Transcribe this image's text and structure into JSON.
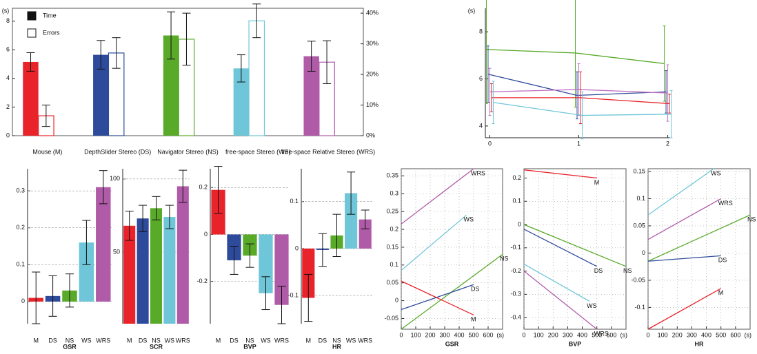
{
  "chart_data": [
    {
      "type": "bar",
      "y_label": "(s)",
      "categories": [
        "Mouse (M)",
        "DepthSlider Stereo (DS)",
        "Navigator Stereo (NS)",
        "free-space Stereo (WS)",
        "free-space Relative Stereo (WRS)"
      ],
      "colors": [
        "#e8232a",
        "#2e4b9b",
        "#5aaa2a",
        "#6ec6d8",
        "#b05ba8"
      ],
      "series": [
        {
          "name": "Time",
          "style": "filled",
          "values": [
            5.15,
            5.65,
            7.0,
            4.7,
            5.55
          ],
          "errors": [
            0.65,
            1.0,
            1.65,
            0.95,
            1.05
          ]
        },
        {
          "name": "Errors",
          "style": "outline",
          "axis": "y2",
          "values": [
            6.5,
            27,
            31.5,
            37.5,
            24
          ],
          "errors": [
            3.5,
            5,
            8.5,
            5.5,
            7
          ]
        }
      ],
      "ylim": [
        0,
        8.9
      ],
      "yticks": [
        0,
        2,
        4,
        6,
        8
      ],
      "y2lim": [
        0,
        41.6
      ],
      "y2ticks": [
        {
          "value": 0,
          "label": "0%"
        },
        {
          "value": 10,
          "label": "10%"
        },
        {
          "value": 20,
          "label": "20%"
        },
        {
          "value": 30,
          "label": "30%"
        },
        {
          "value": 40,
          "label": "40%"
        }
      ],
      "legend": "top-left",
      "frame": true
    },
    {
      "type": "line",
      "y_label": "(s)",
      "x": [
        0,
        1,
        2
      ],
      "xlim": [
        -0.05,
        2.05
      ],
      "xticks": [
        0,
        1,
        2
      ],
      "ylim": [
        3.5,
        9
      ],
      "yticks": [
        4,
        6,
        8
      ],
      "series": [
        {
          "color": "#5aaa2a",
          "values": [
            7.25,
            7.1,
            6.65
          ],
          "errors": [
            2.3,
            2.3,
            1.6
          ]
        },
        {
          "color": "#2e4b9b",
          "values": [
            6.2,
            5.3,
            5.45
          ],
          "errors": [
            1.2,
            1.0,
            0.9
          ]
        },
        {
          "color": "#c070c0",
          "values": [
            5.45,
            5.55,
            5.4
          ],
          "errors": [
            1.0,
            1.1,
            1.2
          ]
        },
        {
          "color": "#e8232a",
          "values": [
            5.2,
            5.2,
            4.95
          ],
          "errors": [
            0.6,
            1.1,
            0.4
          ]
        },
        {
          "color": "#6ec6d8",
          "values": [
            5.0,
            4.45,
            4.5
          ],
          "errors": [
            0.9,
            1.0,
            1.0
          ]
        }
      ]
    },
    {
      "type": "bar",
      "x_label": "GSR",
      "categories": [
        "M",
        "DS",
        "NS",
        "WS",
        "WRS"
      ],
      "colors": [
        "#e8232a",
        "#2e4b9b",
        "#5aaa2a",
        "#6ec6d8",
        "#b05ba8"
      ],
      "values": [
        0.01,
        0.015,
        0.03,
        0.16,
        0.31
      ],
      "errors": [
        0.07,
        0.055,
        0.045,
        0.06,
        0.045
      ],
      "ylim": [
        -0.06,
        0.36
      ],
      "yticks": [
        0,
        0.1,
        0.2,
        0.3
      ],
      "grid": true
    },
    {
      "type": "bar",
      "x_label": "SCR",
      "categories": [
        "M",
        "DS",
        "NS",
        "WS",
        "WRS"
      ],
      "colors": [
        "#e8232a",
        "#2e4b9b",
        "#5aaa2a",
        "#6ec6d8",
        "#b05ba8"
      ],
      "values": [
        68,
        73,
        80,
        74,
        95
      ],
      "errors": [
        10,
        9,
        8,
        8,
        11
      ],
      "ylim": [
        1,
        107
      ],
      "yticks": [
        50,
        100
      ],
      "grid": true
    },
    {
      "type": "bar",
      "x_label": "BVP",
      "categories": [
        "M",
        "DS",
        "NS",
        "WS",
        "WRS"
      ],
      "colors": [
        "#e8232a",
        "#2e4b9b",
        "#5aaa2a",
        "#6ec6d8",
        "#b05ba8"
      ],
      "values": [
        0.19,
        -0.11,
        -0.09,
        -0.25,
        -0.3
      ],
      "errors": [
        0.1,
        0.06,
        0.05,
        0.07,
        0.08
      ],
      "ylim": [
        -0.38,
        0.28
      ],
      "yticks": [
        -0.2,
        0,
        0.2
      ],
      "grid": true
    },
    {
      "type": "bar",
      "x_label": "HR",
      "categories": [
        "M",
        "DS",
        "NS",
        "WS",
        "WRS"
      ],
      "colors": [
        "#e8232a",
        "#2e4b9b",
        "#5aaa2a",
        "#6ec6d8",
        "#b05ba8"
      ],
      "values": [
        -0.105,
        -0.003,
        0.028,
        0.118,
        0.062
      ],
      "errors": [
        0.05,
        0.035,
        0.045,
        0.045,
        0.02
      ],
      "ylim": [
        -0.16,
        0.17
      ],
      "yticks": [
        -0.1,
        0,
        0.1
      ],
      "grid": true
    },
    {
      "type": "line",
      "x_label": "GSR",
      "x_unit": "(s)",
      "xlim": [
        0,
        700
      ],
      "xticks": [
        0,
        100,
        200,
        300,
        400,
        500,
        600
      ],
      "ylim": [
        -0.08,
        0.37
      ],
      "yticks": [
        -0.05,
        0,
        0.05,
        0.1,
        0.15,
        0.2,
        0.25,
        0.3,
        0.35
      ],
      "grid": true,
      "frame": true,
      "series": [
        {
          "name": "WRS",
          "color": "#b05ba8",
          "x": [
            0,
            500
          ],
          "values": [
            0.215,
            0.37
          ]
        },
        {
          "name": "WS",
          "color": "#6ec6d8",
          "x": [
            0,
            450
          ],
          "values": [
            0.085,
            0.24
          ]
        },
        {
          "name": "NS",
          "color": "#5aaa2a",
          "x": [
            0,
            700
          ],
          "values": [
            -0.08,
            0.13
          ]
        },
        {
          "name": "DS",
          "color": "#2e4b9b",
          "x": [
            0,
            500
          ],
          "values": [
            -0.025,
            0.045
          ]
        },
        {
          "name": "M",
          "color": "#e8232a",
          "x": [
            0,
            500
          ],
          "values": [
            0.055,
            -0.04
          ]
        }
      ]
    },
    {
      "type": "line",
      "x_label": "BVP",
      "x_unit": "(s)",
      "xlim": [
        0,
        700
      ],
      "xticks": [
        0,
        100,
        200,
        300,
        400,
        500,
        600
      ],
      "ylim": [
        -0.45,
        0.24
      ],
      "yticks": [
        -0.4,
        -0.3,
        -0.2,
        -0.1,
        0,
        0.1,
        0.2
      ],
      "grid": true,
      "frame": true,
      "series": [
        {
          "name": "M",
          "color": "#e8232a",
          "x": [
            0,
            500
          ],
          "values": [
            0.235,
            0.2
          ]
        },
        {
          "name": "NS",
          "color": "#5aaa2a",
          "x": [
            0,
            700
          ],
          "values": [
            0,
            -0.18
          ]
        },
        {
          "name": "DS",
          "color": "#2e4b9b",
          "x": [
            0,
            500
          ],
          "values": [
            -0.02,
            -0.18
          ]
        },
        {
          "name": "WS",
          "color": "#6ec6d8",
          "x": [
            0,
            450
          ],
          "values": [
            -0.17,
            -0.33
          ]
        },
        {
          "name": "WRS",
          "color": "#b05ba8",
          "x": [
            0,
            500
          ],
          "values": [
            -0.2,
            -0.45
          ]
        }
      ]
    },
    {
      "type": "line",
      "x_label": "HR",
      "x_unit": "(s)",
      "xlim": [
        0,
        700
      ],
      "xticks": [
        0,
        100,
        200,
        300,
        400,
        500,
        600
      ],
      "ylim": [
        -0.14,
        0.155
      ],
      "yticks": [
        -0.1,
        -0.05,
        0,
        0.05,
        0.1,
        0.15
      ],
      "grid": true,
      "frame": true,
      "series": [
        {
          "name": "WS",
          "color": "#6ec6d8",
          "x": [
            0,
            450
          ],
          "values": [
            0.07,
            0.155
          ]
        },
        {
          "name": "WRS",
          "color": "#b05ba8",
          "x": [
            0,
            500
          ],
          "values": [
            0.025,
            0.1
          ]
        },
        {
          "name": "NS",
          "color": "#5aaa2a",
          "x": [
            0,
            700
          ],
          "values": [
            -0.015,
            0.07
          ]
        },
        {
          "name": "DS",
          "color": "#2e4b9b",
          "x": [
            0,
            500
          ],
          "values": [
            -0.015,
            -0.005
          ]
        },
        {
          "name": "M",
          "color": "#e8232a",
          "x": [
            0,
            500
          ],
          "values": [
            -0.14,
            -0.065
          ]
        }
      ]
    }
  ]
}
